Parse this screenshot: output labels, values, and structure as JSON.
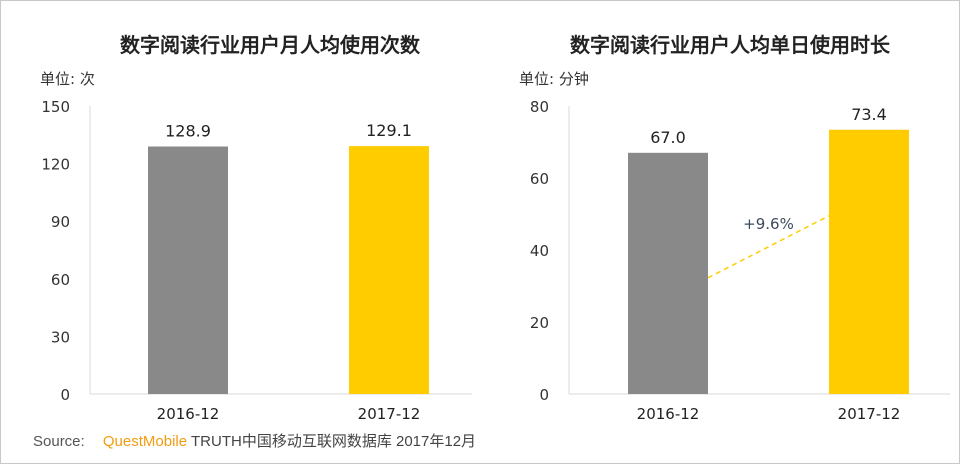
{
  "chart_data": [
    {
      "type": "bar",
      "title": "数字阅读行业用户月人均使用次数",
      "unit_label": "单位: 次",
      "categories": [
        "2016-12",
        "2017-12"
      ],
      "values": [
        128.9,
        129.1
      ],
      "value_labels": [
        "128.9",
        "129.1"
      ],
      "bar_colors": [
        "#898989",
        "#ffcc00"
      ],
      "ylim": [
        0,
        150
      ],
      "yticks": [
        0,
        30,
        60,
        90,
        120,
        150
      ],
      "grid": false
    },
    {
      "type": "bar",
      "title": "数字阅读行业用户人均单日使用时长",
      "unit_label": "单位: 分钟",
      "categories": [
        "2016-12",
        "2017-12"
      ],
      "values": [
        67.0,
        73.4
      ],
      "value_labels": [
        "67.0",
        "73.4"
      ],
      "bar_colors": [
        "#898989",
        "#ffcc00"
      ],
      "ylim": [
        0,
        80
      ],
      "yticks": [
        0,
        20,
        40,
        60,
        80
      ],
      "grid": false,
      "annotation": {
        "text": "+9.6%",
        "color": "#ffcc00",
        "style": "dashed-line"
      }
    }
  ],
  "source": {
    "label": "Source:",
    "brand": "QuestMobile",
    "text": "TRUTH中国移动互联网数据库 2017年12月"
  }
}
